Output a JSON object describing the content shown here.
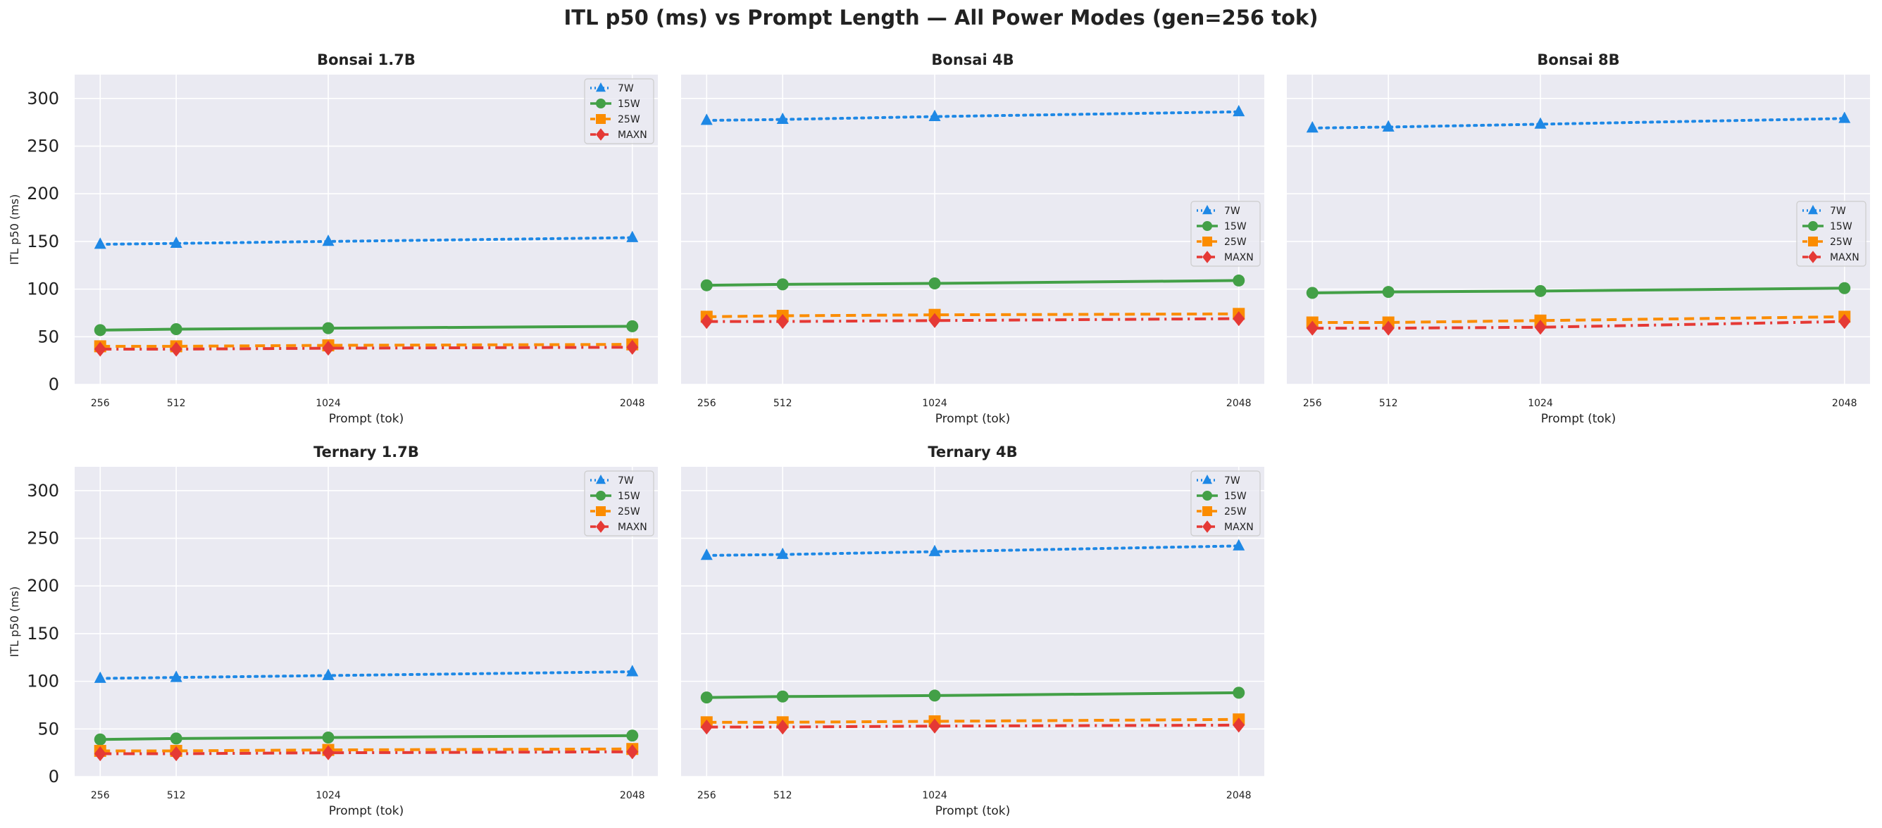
{
  "figure": {
    "title": "ITL p50 (ms) vs Prompt Length — All Power Modes (gen=256 tok)"
  },
  "colors": {
    "background": "#eaeaf2",
    "grid": "#ffffff",
    "7W": "#1e88e5",
    "15W": "#43a047",
    "25W": "#fb8c00",
    "MAXN": "#e53935"
  },
  "chart_data": [
    {
      "type": "line",
      "title": "Bonsai 1.7B",
      "xlabel": "Prompt (tok)",
      "ylabel": "ITL p50 (ms)",
      "x": [
        256,
        512,
        1024,
        2048
      ],
      "xlim": [
        170,
        2134
      ],
      "ylim": [
        0,
        325
      ],
      "yticks": [
        0,
        50,
        100,
        150,
        200,
        250,
        300
      ],
      "legend": "top-right",
      "grid": true,
      "series": [
        {
          "name": "7W",
          "values": [
            147,
            148,
            150,
            154
          ]
        },
        {
          "name": "15W",
          "values": [
            57,
            58,
            59,
            61
          ]
        },
        {
          "name": "25W",
          "values": [
            40,
            40,
            41,
            42
          ]
        },
        {
          "name": "MAXN",
          "values": [
            37,
            37,
            38,
            39
          ]
        }
      ]
    },
    {
      "type": "line",
      "title": "Bonsai 4B",
      "xlabel": "Prompt (tok)",
      "ylabel": "",
      "x": [
        256,
        512,
        1024,
        2048
      ],
      "xlim": [
        170,
        2134
      ],
      "ylim": [
        0,
        325
      ],
      "yticks": [
        0,
        50,
        100,
        150,
        200,
        250,
        300
      ],
      "legend": "center-right",
      "grid": true,
      "series": [
        {
          "name": "7W",
          "values": [
            277,
            278,
            281,
            286
          ]
        },
        {
          "name": "15W",
          "values": [
            104,
            105,
            106,
            109
          ]
        },
        {
          "name": "25W",
          "values": [
            71,
            72,
            73,
            74
          ]
        },
        {
          "name": "MAXN",
          "values": [
            66,
            66,
            67,
            69
          ]
        }
      ]
    },
    {
      "type": "line",
      "title": "Bonsai 8B",
      "xlabel": "Prompt (tok)",
      "ylabel": "",
      "x": [
        256,
        512,
        1024,
        2048
      ],
      "xlim": [
        170,
        2134
      ],
      "ylim": [
        0,
        325
      ],
      "yticks": [
        0,
        50,
        100,
        150,
        200,
        250,
        300
      ],
      "legend": "center-right",
      "grid": true,
      "series": [
        {
          "name": "7W",
          "values": [
            269,
            270,
            273,
            279
          ]
        },
        {
          "name": "15W",
          "values": [
            96,
            97,
            98,
            101
          ]
        },
        {
          "name": "25W",
          "values": [
            65,
            65,
            67,
            71
          ]
        },
        {
          "name": "MAXN",
          "values": [
            59,
            59,
            60,
            66
          ]
        }
      ]
    },
    {
      "type": "line",
      "title": "Ternary 1.7B",
      "xlabel": "Prompt (tok)",
      "ylabel": "ITL p50 (ms)",
      "x": [
        256,
        512,
        1024,
        2048
      ],
      "xlim": [
        170,
        2134
      ],
      "ylim": [
        0,
        325
      ],
      "yticks": [
        0,
        50,
        100,
        150,
        200,
        250,
        300
      ],
      "legend": "top-right",
      "grid": true,
      "series": [
        {
          "name": "7W",
          "values": [
            103,
            104,
            106,
            110
          ]
        },
        {
          "name": "15W",
          "values": [
            39,
            40,
            41,
            43
          ]
        },
        {
          "name": "25W",
          "values": [
            27,
            27,
            28,
            29
          ]
        },
        {
          "name": "MAXN",
          "values": [
            24,
            24,
            25,
            26
          ]
        }
      ]
    },
    {
      "type": "line",
      "title": "Ternary 4B",
      "xlabel": "Prompt (tok)",
      "ylabel": "",
      "x": [
        256,
        512,
        1024,
        2048
      ],
      "xlim": [
        170,
        2134
      ],
      "ylim": [
        0,
        325
      ],
      "yticks": [
        0,
        50,
        100,
        150,
        200,
        250,
        300
      ],
      "legend": "top-right",
      "grid": true,
      "series": [
        {
          "name": "7W",
          "values": [
            232,
            233,
            236,
            242
          ]
        },
        {
          "name": "15W",
          "values": [
            83,
            84,
            85,
            88
          ]
        },
        {
          "name": "25W",
          "values": [
            57,
            57,
            58,
            60
          ]
        },
        {
          "name": "MAXN",
          "values": [
            52,
            52,
            53,
            54
          ]
        }
      ]
    }
  ]
}
